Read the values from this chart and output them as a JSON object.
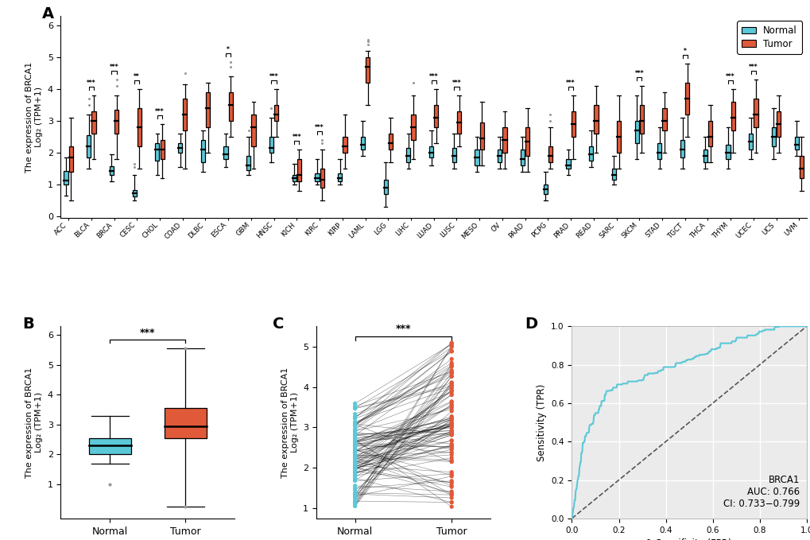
{
  "cancer_types": [
    "ACC",
    "BLCA",
    "BRCA",
    "CESC",
    "CHOL",
    "COAD",
    "DLBC",
    "ESCA",
    "GBM",
    "HNSC",
    "KICH",
    "KIRC",
    "KIRP",
    "LAML",
    "LGG",
    "LIHC",
    "LUAD",
    "LUSC",
    "MESO",
    "OV",
    "PAAD",
    "PCPG",
    "PRAD",
    "READ",
    "SARC",
    "SKCM",
    "STAD",
    "TGCT",
    "THCA",
    "THYM",
    "UCEC",
    "UCS",
    "UVM"
  ],
  "normal_color": "#5BC8D8",
  "tumor_color": "#E05A3A",
  "outlier_color": "#999999",
  "significance": {
    "BLCA": "***",
    "BRCA": "***",
    "CESC": "**",
    "CHOL": "***",
    "ESCA": "*",
    "HNSC": "***",
    "KICH": "***",
    "KIRC": "***",
    "LUAD": "***",
    "LUSC": "***",
    "PRAD": "***",
    "SKCM": "***",
    "TGCT": "*",
    "THYM": "***",
    "UCEC": "***"
  },
  "panel_A": {
    "normal_boxes": {
      "ACC": [
        0.65,
        1.0,
        1.12,
        1.42,
        1.85
      ],
      "BLCA": [
        1.5,
        1.85,
        2.2,
        2.55,
        3.2
      ],
      "BRCA": [
        1.1,
        1.3,
        1.42,
        1.58,
        1.95
      ],
      "CESC": [
        0.5,
        0.62,
        0.72,
        0.82,
        1.3
      ],
      "CHOL": [
        1.3,
        1.75,
        2.1,
        2.3,
        2.6
      ],
      "COAD": [
        1.55,
        2.0,
        2.15,
        2.3,
        2.6
      ],
      "DLBC": [
        1.4,
        1.7,
        2.1,
        2.4,
        2.7
      ],
      "ESCA": [
        1.55,
        1.8,
        1.95,
        2.2,
        2.6
      ],
      "GBM": [
        1.3,
        1.45,
        1.6,
        1.9,
        2.5
      ],
      "HNSC": [
        1.7,
        2.0,
        2.15,
        2.5,
        3.1
      ],
      "KICH": [
        1.0,
        1.1,
        1.2,
        1.3,
        1.65
      ],
      "KIRC": [
        1.0,
        1.1,
        1.2,
        1.35,
        1.8
      ],
      "KIRP": [
        1.0,
        1.1,
        1.2,
        1.35,
        1.8
      ],
      "LAML": [
        1.9,
        2.1,
        2.25,
        2.5,
        3.0
      ],
      "LGG": [
        0.3,
        0.7,
        0.9,
        1.15,
        1.7
      ],
      "LIHC": [
        1.5,
        1.7,
        1.9,
        2.15,
        2.6
      ],
      "LUAD": [
        1.6,
        1.85,
        2.0,
        2.2,
        2.7
      ],
      "LUSC": [
        1.5,
        1.7,
        1.9,
        2.15,
        2.6
      ],
      "MESO": [
        1.4,
        1.6,
        1.85,
        2.1,
        2.5
      ],
      "OV": [
        1.5,
        1.7,
        1.9,
        2.1,
        2.5
      ],
      "PAAD": [
        1.4,
        1.6,
        1.8,
        2.1,
        2.5
      ],
      "PCPG": [
        0.5,
        0.7,
        0.85,
        1.0,
        1.4
      ],
      "PRAD": [
        1.3,
        1.5,
        1.6,
        1.8,
        2.1
      ],
      "READ": [
        1.55,
        1.75,
        1.95,
        2.2,
        2.7
      ],
      "SARC": [
        1.0,
        1.15,
        1.3,
        1.5,
        1.9
      ],
      "SKCM": [
        1.8,
        2.3,
        2.7,
        3.0,
        3.8
      ],
      "STAD": [
        1.5,
        1.8,
        2.0,
        2.3,
        2.8
      ],
      "TGCT": [
        1.5,
        1.85,
        2.1,
        2.4,
        3.1
      ],
      "THCA": [
        1.5,
        1.7,
        1.9,
        2.1,
        2.5
      ],
      "THYM": [
        1.5,
        1.8,
        2.0,
        2.25,
        2.8
      ],
      "UCEC": [
        1.8,
        2.1,
        2.35,
        2.6,
        3.1
      ],
      "UCS": [
        1.8,
        2.2,
        2.5,
        2.8,
        3.4
      ],
      "UVM": [
        1.9,
        2.1,
        2.25,
        2.5,
        3.0
      ]
    },
    "tumor_boxes": {
      "ACC": [
        0.5,
        1.4,
        1.85,
        2.2,
        3.1
      ],
      "BLCA": [
        1.8,
        2.6,
        3.0,
        3.3,
        3.8
      ],
      "BRCA": [
        1.8,
        2.6,
        3.0,
        3.35,
        3.8
      ],
      "CESC": [
        1.5,
        2.2,
        2.8,
        3.4,
        4.0
      ],
      "CHOL": [
        1.2,
        1.8,
        2.1,
        2.4,
        2.9
      ],
      "COAD": [
        1.5,
        2.7,
        3.2,
        3.7,
        4.15
      ],
      "DLBC": [
        2.0,
        2.8,
        3.4,
        3.9,
        4.2
      ],
      "ESCA": [
        2.5,
        3.0,
        3.5,
        3.9,
        4.4
      ],
      "GBM": [
        1.5,
        2.2,
        2.8,
        3.2,
        3.6
      ],
      "HNSC": [
        2.5,
        3.0,
        3.2,
        3.5,
        4.0
      ],
      "KICH": [
        0.8,
        1.1,
        1.3,
        1.8,
        2.1
      ],
      "KIRC": [
        0.5,
        0.9,
        1.15,
        1.5,
        2.1
      ],
      "KIRP": [
        1.5,
        2.0,
        2.2,
        2.5,
        3.2
      ],
      "LAML": [
        3.5,
        4.2,
        4.7,
        5.0,
        5.2
      ],
      "LGG": [
        1.7,
        2.1,
        2.3,
        2.6,
        3.1
      ],
      "LIHC": [
        1.8,
        2.4,
        2.8,
        3.2,
        3.8
      ],
      "LUAD": [
        2.3,
        2.8,
        3.1,
        3.5,
        4.0
      ],
      "LUSC": [
        2.2,
        2.6,
        2.95,
        3.3,
        3.8
      ],
      "MESO": [
        1.6,
        2.1,
        2.45,
        2.95,
        3.6
      ],
      "OV": [
        1.5,
        2.0,
        2.4,
        2.8,
        3.3
      ],
      "PAAD": [
        1.4,
        1.9,
        2.35,
        2.8,
        3.4
      ],
      "PCPG": [
        1.5,
        1.7,
        1.9,
        2.2,
        2.8
      ],
      "PRAD": [
        1.8,
        2.5,
        2.9,
        3.3,
        3.8
      ],
      "READ": [
        2.0,
        2.6,
        3.0,
        3.5,
        4.1
      ],
      "SARC": [
        1.5,
        2.0,
        2.5,
        3.0,
        3.8
      ],
      "SKCM": [
        2.0,
        2.6,
        3.0,
        3.5,
        4.1
      ],
      "STAD": [
        2.0,
        2.7,
        3.0,
        3.4,
        3.9
      ],
      "TGCT": [
        2.5,
        3.2,
        3.7,
        4.2,
        4.8
      ],
      "THCA": [
        1.7,
        2.2,
        2.5,
        3.0,
        3.5
      ],
      "THYM": [
        2.0,
        2.7,
        3.1,
        3.6,
        4.0
      ],
      "UCEC": [
        2.0,
        2.8,
        3.2,
        3.7,
        4.3
      ],
      "UCS": [
        2.0,
        2.5,
        2.9,
        3.3,
        3.8
      ],
      "UVM": [
        0.8,
        1.2,
        1.5,
        1.9,
        2.5
      ]
    },
    "outliers_normal": {
      "BLCA": [
        3.5,
        3.7
      ],
      "GBM": [
        2.7
      ],
      "HNSC": [
        3.4
      ],
      "CESC": [
        1.55,
        1.65
      ]
    },
    "outliers_tumor": {
      "BRCA": [
        4.1,
        4.3
      ],
      "ESCA": [
        4.7,
        4.85
      ],
      "LAML": [
        5.4,
        5.5,
        5.55
      ],
      "LIHC": [
        4.2
      ],
      "COAD": [
        4.5
      ],
      "KIRC": [
        2.3,
        2.4
      ],
      "PCPG": [
        3.0,
        3.2
      ]
    }
  },
  "panel_B": {
    "normal_box": [
      1.7,
      2.0,
      2.3,
      2.55,
      3.3
    ],
    "tumor_box": [
      0.25,
      2.55,
      2.95,
      3.55,
      5.55
    ],
    "normal_outliers": [
      1.0
    ],
    "tumor_outliers": [
      0.25,
      5.55
    ]
  },
  "panel_C": {
    "n_pairs": 113
  },
  "panel_D": {
    "auc": 0.766,
    "ci_low": 0.733,
    "ci_high": 0.799,
    "label": "BRCA1"
  },
  "ylabel_main": "The expression of BRCA1\nLog₂ (TPM+1)",
  "background_color": "#FFFFFF",
  "roc_bg_color": "#EBEBEB"
}
